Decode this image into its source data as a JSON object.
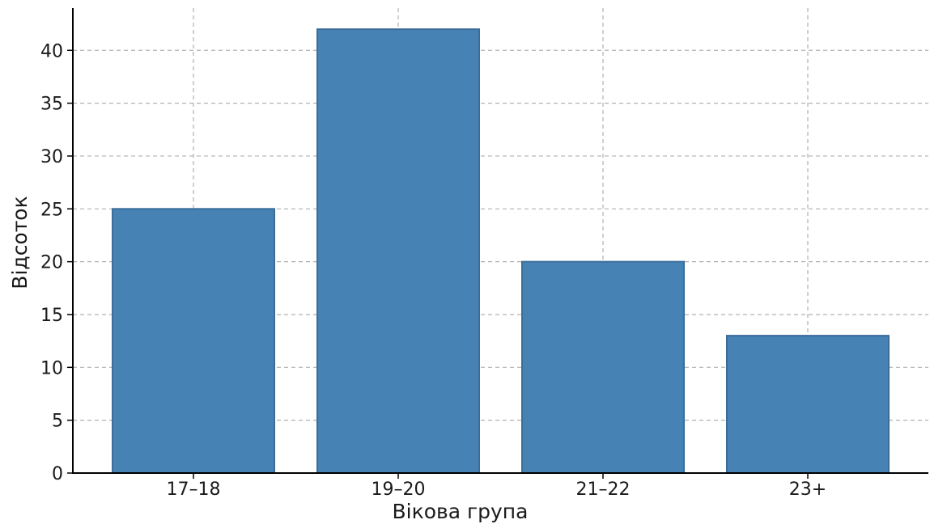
{
  "chart_data": {
    "type": "bar",
    "title": "",
    "xlabel": "Вікова група",
    "ylabel": "Відсоток",
    "categories": [
      "17–18",
      "19–20",
      "21–22",
      "23+"
    ],
    "values": [
      25,
      42,
      20,
      13
    ],
    "ylim": [
      0,
      44
    ],
    "yticks": [
      0,
      5,
      10,
      15,
      20,
      25,
      30,
      35,
      40
    ],
    "grid": true,
    "legend": "none",
    "colors": {
      "bar_fill": "#4682b4",
      "bar_edge": "#3a6d99",
      "grid": "#b0b0b0",
      "axis": "#000000"
    }
  }
}
